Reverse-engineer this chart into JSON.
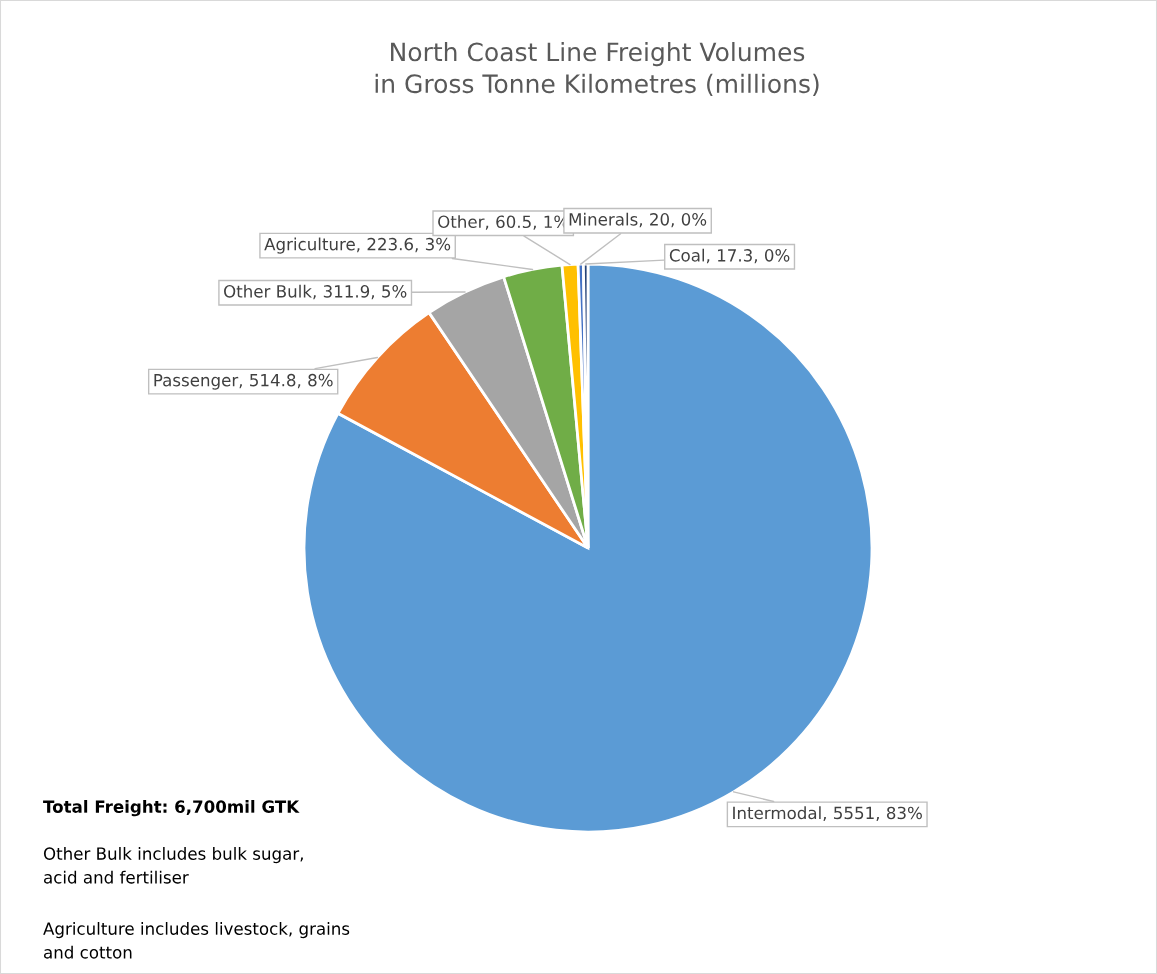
{
  "chart_data": {
    "type": "pie",
    "title": "North Coast Line Freight Volumes\nin Gross Tonne Kilometres (millions)",
    "categories": [
      "Intermodal",
      "Passenger",
      "Other Bulk",
      "Agriculture",
      "Other",
      "Minerals",
      "Coal"
    ],
    "values": [
      5551,
      514.8,
      311.9,
      223.6,
      60.5,
      20,
      17.3
    ],
    "colors": [
      "#5b9bd5",
      "#ed7d31",
      "#a5a5a5",
      "#70ad47",
      "#ffc000",
      "#4472c4",
      "#264478"
    ],
    "value_labels": [
      ", 5551, 83%",
      ", 514.8, 8%",
      ", 311.9, 5%",
      ", 223.6, 3%",
      ", 60.5, 1%",
      ", 20, 0%",
      ", 17.3, 0%"
    ],
    "annotations": [
      "Total Freight: 6,700mil GTK",
      "Other Bulk includes bulk sugar,\nacid and fertiliser",
      "Agriculture includes livestock, grains\nand cotton"
    ],
    "legend": false
  }
}
